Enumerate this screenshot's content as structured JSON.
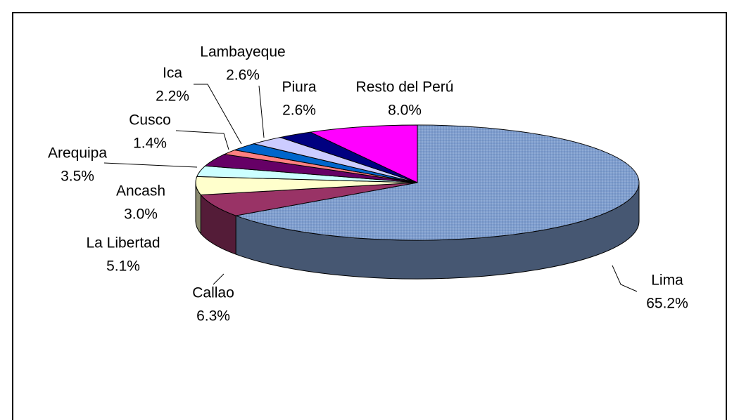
{
  "chart_data": {
    "type": "pie",
    "categories": [
      "Lima",
      "Callao",
      "La Libertad",
      "Ancash",
      "Arequipa",
      "Cusco",
      "Ica",
      "Lambayeque",
      "Piura",
      "Resto del Perú"
    ],
    "values": [
      65.2,
      6.3,
      5.1,
      3.0,
      3.5,
      1.4,
      2.2,
      2.6,
      2.6,
      8.0
    ],
    "value_labels": [
      "65.2%",
      "6.3%",
      "5.1%",
      "3.0%",
      "3.5%",
      "1.4%",
      "2.2%",
      "2.6%",
      "2.6%",
      "8.0%"
    ],
    "colors": [
      "#7f9fd0",
      "#993366",
      "#ffffcc",
      "#ccffff",
      "#660066",
      "#ff8080",
      "#0066cc",
      "#ccccff",
      "#000080",
      "#ff00ff"
    ]
  }
}
